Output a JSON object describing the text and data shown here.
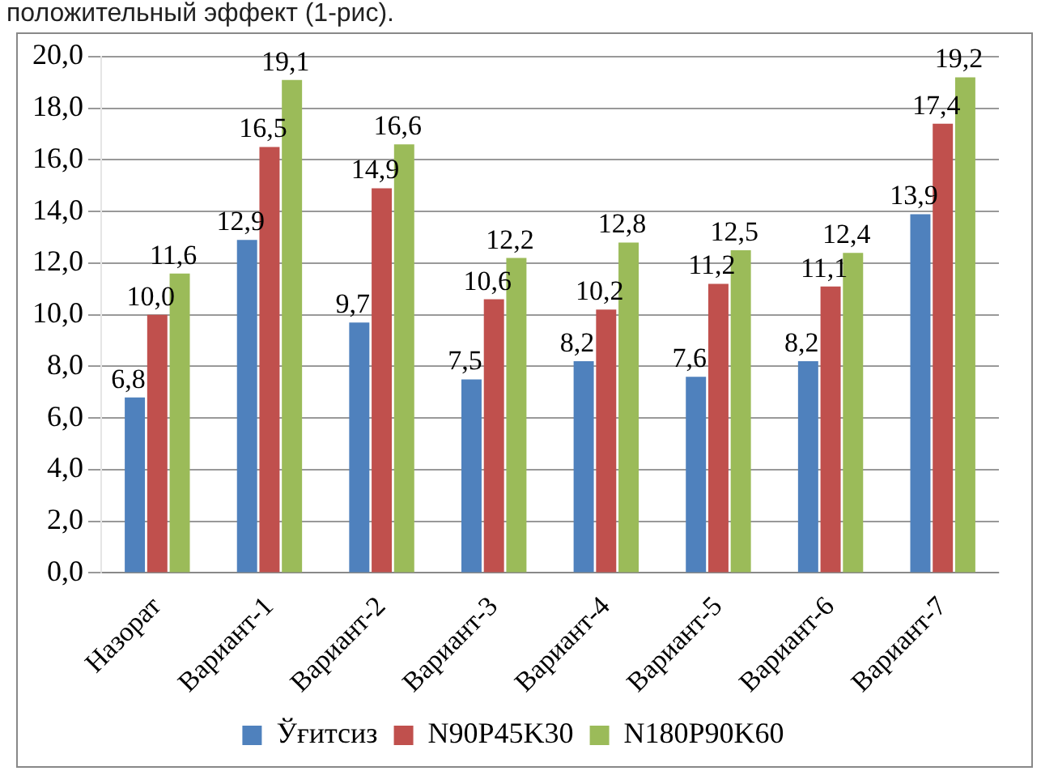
{
  "chart_data": {
    "type": "bar",
    "annotations": [
      "положительный эффект (1-рис)."
    ],
    "categories": [
      "Назорат",
      "Вариант-1",
      "Вариант-2",
      "Вариант-3",
      "Вариант-4",
      "Вариант-5",
      "Вариант-6",
      "Вариант-7"
    ],
    "series": [
      {
        "name": "Ўғитсиз",
        "color": "#4f81bd",
        "values": [
          6.8,
          12.9,
          9.7,
          7.5,
          8.2,
          7.6,
          8.2,
          13.9
        ],
        "value_labels": [
          "6,8",
          "12,9",
          "9,7",
          "7,5",
          "8,2",
          "7,6",
          "8,2",
          "13,9"
        ]
      },
      {
        "name": "N90P45K30",
        "color": "#c0504d",
        "values": [
          10.0,
          16.5,
          14.9,
          10.6,
          10.2,
          11.2,
          11.1,
          17.4
        ],
        "value_labels": [
          "10,0",
          "16,5",
          "14,9",
          "10,6",
          "10,2",
          "11,2",
          "11,1",
          "17,4"
        ]
      },
      {
        "name": "N180P90K60",
        "color": "#9bbb59",
        "values": [
          11.6,
          19.1,
          16.6,
          12.2,
          12.8,
          12.5,
          12.4,
          19.2
        ],
        "value_labels": [
          "11,6",
          "19,1",
          "16,6",
          "12,2",
          "12,8",
          "12,5",
          "12,4",
          "19,2"
        ]
      }
    ],
    "ylim": [
      0,
      20
    ],
    "yticks": [
      {
        "value": 0,
        "label": "0,0"
      },
      {
        "value": 2,
        "label": "2,0"
      },
      {
        "value": 4,
        "label": "4,0"
      },
      {
        "value": 6,
        "label": "6,0"
      },
      {
        "value": 8,
        "label": "8,0"
      },
      {
        "value": 10,
        "label": "10,0"
      },
      {
        "value": 12,
        "label": "12,0"
      },
      {
        "value": 14,
        "label": "14,0"
      },
      {
        "value": 16,
        "label": "16,0"
      },
      {
        "value": 18,
        "label": "18,0"
      },
      {
        "value": 20,
        "label": "20,0"
      }
    ],
    "grid": "y",
    "legend": "bottom"
  }
}
